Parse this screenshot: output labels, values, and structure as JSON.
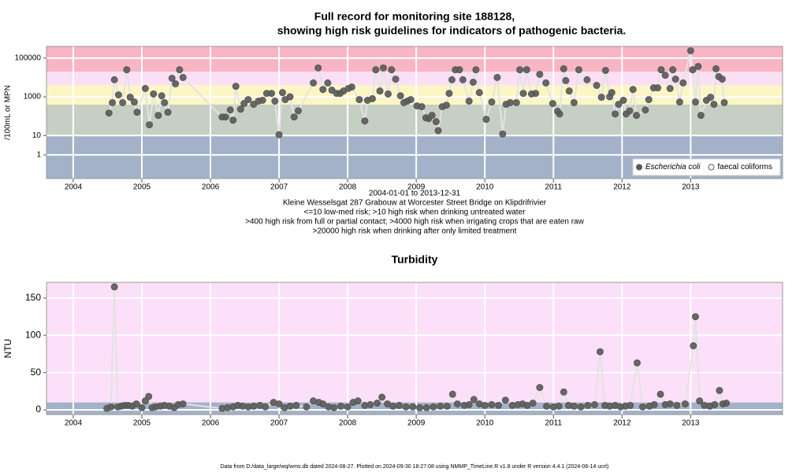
{
  "chart_data": [
    {
      "type": "scatter",
      "title": "Full record for monitoring site 188128,",
      "subtitle": "showing high risk guidelines for indicators of pathogenic bacteria.",
      "y_label": "/100mL or MPN",
      "notes": [
        "2004-01-01 to 2013-12-31",
        "Kleine Wesselsgat 287 Grabouw at Worcester Street Bridge on Klipdrifrivier",
        "<=10 low-med risk; >10 high risk when drinking untreated water",
        ">400 high risk from full or partial contact; >4000 high risk when irrigating crops that are eaten raw",
        ">20000 high risk when drinking after only limited treatment"
      ],
      "xlim": [
        2003.61,
        2014.34
      ],
      "xticks": [
        2004,
        2005,
        2006,
        2007,
        2008,
        2009,
        2010,
        2011,
        2012,
        2013
      ],
      "ylim": [
        0.06,
        400000
      ],
      "yticks": [
        1,
        10,
        1000,
        100000
      ],
      "log_y": true,
      "grid": true,
      "thresholds": [
        10,
        400,
        4000,
        20000
      ],
      "band_colors": [
        "#a3b2c9",
        "#c5cfc3",
        "#fcf6c6",
        "#fbdff4",
        "#f8b5c3"
      ],
      "legend": "bottom right",
      "series": [
        {
          "name": "Escherichia coli",
          "color": "#595959",
          "marker": "filled",
          "x": [
            2004.52,
            2004.57,
            2004.6,
            2004.66,
            2004.72,
            2004.78,
            2004.83,
            2004.89,
            2004.93,
            2005.05,
            2005.11,
            2005.17,
            2005.24,
            2005.29,
            2005.33,
            2005.38,
            2005.44,
            2005.49,
            2005.55,
            2005.6,
            2006.17,
            2006.22,
            2006.29,
            2006.33,
            2006.37,
            2006.44,
            2006.49,
            2006.55,
            2006.63,
            2006.7,
            2006.76,
            2006.82,
            2006.89,
            2006.94,
            2007.0,
            2007.05,
            2007.09,
            2007.16,
            2007.22,
            2007.28,
            2007.5,
            2007.57,
            2007.64,
            2007.71,
            2007.77,
            2007.84,
            2007.89,
            2007.94,
            2008.01,
            2008.06,
            2008.17,
            2008.25,
            2008.29,
            2008.36,
            2008.41,
            2008.47,
            2008.52,
            2008.59,
            2008.64,
            2008.7,
            2008.77,
            2008.82,
            2008.87,
            2008.92,
            2009.01,
            2009.08,
            2009.14,
            2009.18,
            2009.23,
            2009.29,
            2009.32,
            2009.38,
            2009.44,
            2009.48,
            2009.52,
            2009.57,
            2009.63,
            2009.68,
            2009.77,
            2009.83,
            2009.87,
            2009.92,
            2010.02,
            2010.1,
            2010.18,
            2010.26,
            2010.31,
            2010.37,
            2010.46,
            2010.51,
            2010.56,
            2010.61,
            2010.68,
            2010.74,
            2010.8,
            2010.89,
            2010.99,
            2011.06,
            2011.09,
            2011.15,
            2011.18,
            2011.23,
            2011.3,
            2011.37,
            2011.49,
            2011.63,
            2011.7,
            2011.76,
            2011.82,
            2011.85,
            2011.9,
            2011.95,
            2012.02,
            2012.06,
            2012.11,
            2012.16,
            2012.21,
            2012.34,
            2012.39,
            2012.46,
            2012.52,
            2012.57,
            2012.63,
            2012.7,
            2012.74,
            2012.78,
            2012.84,
            2012.89,
            2013.0,
            2013.03,
            2013.07,
            2013.11,
            2013.15,
            2013.23,
            2013.29,
            2013.34,
            2013.37,
            2013.41,
            2013.46,
            2013.49
          ],
          "values": [
            145,
            500,
            7600,
            1260,
            500,
            25000,
            950,
            540,
            160,
            2700,
            36,
            1400,
            110,
            1130,
            500,
            160,
            9100,
            4700,
            25000,
            10000,
            91,
            91,
            210,
            62,
            3500,
            230,
            450,
            720,
            410,
            600,
            660,
            1500,
            1500,
            600,
            11,
            1660,
            720,
            1000,
            91,
            190,
            5200,
            31000,
            2400,
            5200,
            2200,
            1500,
            1500,
            2000,
            2700,
            3200,
            720,
            57,
            660,
            800,
            25000,
            2000,
            31000,
            1400,
            25000,
            8200,
            1130,
            500,
            600,
            720,
            340,
            310,
            83,
            75,
            110,
            52,
            18,
            310,
            370,
            1500,
            7600,
            25000,
            25000,
            7600,
            600,
            5700,
            25000,
            1660,
            69,
            540,
            10000,
            12,
            410,
            500,
            500,
            25000,
            1500,
            25000,
            1400,
            1500,
            14500,
            5200,
            450,
            180,
            130,
            28000,
            6900,
            2000,
            500,
            25000,
            7600,
            3900,
            950,
            23000,
            1000,
            1660,
            130,
            410,
            660,
            130,
            190,
            2400,
            110,
            210,
            720,
            2900,
            2900,
            25000,
            13000,
            2700,
            25000,
            8200,
            540,
            5200,
            240000,
            25000,
            540,
            37000,
            110,
            660,
            950,
            410,
            28000,
            11000,
            8200,
            500
          ]
        },
        {
          "name": "faecal coliforms",
          "color": "#595959",
          "marker": "open",
          "x": [],
          "values": []
        }
      ]
    },
    {
      "type": "scatter",
      "title": "Turbidity",
      "y_label": "NTU",
      "xlim": [
        2003.61,
        2014.34
      ],
      "xticks": [
        2004,
        2005,
        2006,
        2007,
        2008,
        2009,
        2010,
        2011,
        2012,
        2013
      ],
      "ylim": [
        -6.3,
        171
      ],
      "yticks": [
        0,
        50,
        100,
        150
      ],
      "log_y": false,
      "grid": true,
      "thresholds": [
        10
      ],
      "band_colors": [
        "#a3b2c9",
        "#fcdff9"
      ],
      "series": [
        {
          "color": "#595959",
          "marker": "filled",
          "x": [
            2004.49,
            2004.55,
            2004.6,
            2004.65,
            2004.7,
            2004.75,
            2004.8,
            2004.86,
            2004.92,
            2005.0,
            2005.05,
            2005.1,
            2005.15,
            2005.2,
            2005.27,
            2005.33,
            2005.4,
            2005.47,
            2005.53,
            2005.6,
            2006.17,
            2006.25,
            2006.33,
            2006.4,
            2006.47,
            2006.55,
            2006.63,
            2006.72,
            2006.8,
            2006.92,
            2007.0,
            2007.08,
            2007.16,
            2007.25,
            2007.4,
            2007.5,
            2007.58,
            2007.64,
            2007.72,
            2007.8,
            2007.9,
            2008.0,
            2008.08,
            2008.15,
            2008.25,
            2008.33,
            2008.43,
            2008.5,
            2008.58,
            2008.66,
            2008.75,
            2008.85,
            2008.95,
            2009.05,
            2009.15,
            2009.25,
            2009.35,
            2009.45,
            2009.53,
            2009.6,
            2009.7,
            2009.77,
            2009.84,
            2009.92,
            2010.0,
            2010.1,
            2010.2,
            2010.3,
            2010.4,
            2010.48,
            2010.55,
            2010.62,
            2010.7,
            2010.8,
            2010.9,
            2011.0,
            2011.08,
            2011.15,
            2011.22,
            2011.3,
            2011.4,
            2011.5,
            2011.6,
            2011.68,
            2011.75,
            2011.82,
            2011.9,
            2011.98,
            2012.05,
            2012.12,
            2012.22,
            2012.3,
            2012.4,
            2012.47,
            2012.56,
            2012.63,
            2012.7,
            2012.8,
            2012.92,
            2013.04,
            2013.07,
            2013.13,
            2013.2,
            2013.28,
            2013.35,
            2013.42,
            2013.47,
            2013.52
          ],
          "values": [
            2,
            4,
            165,
            4,
            5,
            6,
            6,
            5,
            8,
            3,
            12,
            18,
            3,
            4,
            5,
            6,
            5,
            3,
            7,
            8,
            2,
            3,
            4,
            6,
            5,
            4,
            5,
            6,
            4,
            10,
            8,
            3,
            5,
            6,
            4,
            12,
            10,
            8,
            4,
            3,
            5,
            4,
            10,
            12,
            6,
            7,
            9,
            17,
            8,
            5,
            6,
            4,
            4,
            3,
            3,
            4,
            5,
            5,
            21,
            8,
            6,
            7,
            14,
            8,
            6,
            7,
            6,
            13,
            6,
            7,
            8,
            6,
            9,
            30,
            5,
            4,
            5,
            24,
            6,
            5,
            4,
            6,
            7,
            78,
            6,
            5,
            6,
            4,
            5,
            6,
            63,
            4,
            5,
            7,
            21,
            7,
            8,
            6,
            8,
            86,
            125,
            12,
            6,
            5,
            7,
            26,
            8,
            9
          ]
        }
      ]
    }
  ],
  "footer": "Data from D:/data_large/wq/wms.db dated 2024-08-27. Plotted on 2024-09-30 18:27:08 using NMMP_TimeLine.R v1.8 under R version 4.4.1 (2024-06-14 ucrt)"
}
